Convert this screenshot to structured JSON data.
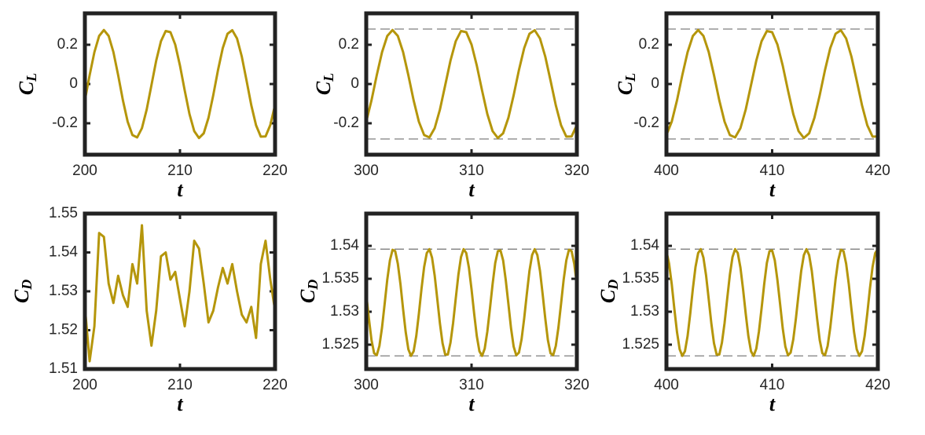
{
  "chart_data": [
    {
      "type": "line",
      "ylabel": "C",
      "ylabel_sub": "L",
      "xlabel": "t",
      "color": "#b5960b",
      "xlim": [
        200,
        220
      ],
      "xticks": [
        200,
        210,
        220
      ],
      "ylim": [
        -0.36,
        0.36
      ],
      "yticks": [
        -0.2,
        0,
        0.2
      ],
      "x": [
        200,
        200.5,
        201,
        201.5,
        202,
        202.5,
        203,
        203.5,
        204,
        204.5,
        205,
        205.5,
        206,
        206.5,
        207,
        207.5,
        208,
        208.5,
        209,
        209.5,
        210,
        210.5,
        211,
        211.5,
        212,
        212.5,
        213,
        213.5,
        214,
        214.5,
        215,
        215.5,
        216,
        216.5,
        217,
        217.5,
        218,
        218.5,
        219,
        219.5,
        220
      ],
      "values": [
        -0.083,
        0.045,
        0.162,
        0.245,
        0.275,
        0.245,
        0.163,
        0.045,
        -0.083,
        -0.192,
        -0.26,
        -0.272,
        -0.225,
        -0.13,
        -0.006,
        0.119,
        0.218,
        0.27,
        0.264,
        0.201,
        0.094,
        -0.033,
        -0.153,
        -0.24,
        -0.275,
        -0.251,
        -0.172,
        -0.057,
        0.071,
        0.183,
        0.256,
        0.274,
        0.232,
        0.14,
        0.018,
        -0.108,
        -0.21,
        -0.268,
        -0.267,
        -0.209,
        -0.106
      ]
    },
    {
      "type": "line",
      "ylabel": "C",
      "ylabel_sub": "L",
      "xlabel": "t",
      "color": "#b5960b",
      "xlim": [
        300,
        320
      ],
      "xticks": [
        300,
        310,
        320
      ],
      "ylim": [
        -0.36,
        0.36
      ],
      "yticks": [
        -0.2,
        0,
        0.2
      ],
      "hlines": [
        0.28,
        -0.28
      ],
      "x": [
        300,
        300.5,
        301,
        301.5,
        302,
        302.5,
        303,
        303.5,
        304,
        304.5,
        305,
        305.5,
        306,
        306.5,
        307,
        307.5,
        308,
        308.5,
        309,
        309.5,
        310,
        310.5,
        311,
        311.5,
        312,
        312.5,
        313,
        313.5,
        314,
        314.5,
        315,
        315.5,
        316,
        316.5,
        317,
        317.5,
        318,
        318.5,
        319,
        319.5,
        320
      ],
      "values": [
        -0.192,
        -0.083,
        0.045,
        0.162,
        0.245,
        0.275,
        0.245,
        0.163,
        0.045,
        -0.083,
        -0.192,
        -0.26,
        -0.272,
        -0.225,
        -0.13,
        -0.006,
        0.119,
        0.218,
        0.27,
        0.264,
        0.201,
        0.094,
        -0.033,
        -0.153,
        -0.24,
        -0.275,
        -0.251,
        -0.172,
        -0.057,
        0.071,
        0.183,
        0.256,
        0.274,
        0.232,
        0.14,
        0.018,
        -0.108,
        -0.21,
        -0.268,
        -0.267,
        -0.209
      ]
    },
    {
      "type": "line",
      "ylabel": "C",
      "ylabel_sub": "L",
      "xlabel": "t",
      "color": "#b5960b",
      "xlim": [
        400,
        420
      ],
      "xticks": [
        400,
        410,
        420
      ],
      "ylim": [
        -0.36,
        0.36
      ],
      "yticks": [
        -0.2,
        0,
        0.2
      ],
      "hlines": [
        0.28,
        -0.28
      ],
      "x": [
        400,
        400.5,
        401,
        401.5,
        402,
        402.5,
        403,
        403.5,
        404,
        404.5,
        405,
        405.5,
        406,
        406.5,
        407,
        407.5,
        408,
        408.5,
        409,
        409.5,
        410,
        410.5,
        411,
        411.5,
        412,
        412.5,
        413,
        413.5,
        414,
        414.5,
        415,
        415.5,
        416,
        416.5,
        417,
        417.5,
        418,
        418.5,
        419,
        419.5,
        420
      ],
      "values": [
        -0.26,
        -0.192,
        -0.083,
        0.045,
        0.162,
        0.245,
        0.275,
        0.245,
        0.163,
        0.045,
        -0.083,
        -0.192,
        -0.26,
        -0.272,
        -0.225,
        -0.13,
        -0.006,
        0.119,
        0.218,
        0.27,
        0.264,
        0.201,
        0.094,
        -0.033,
        -0.153,
        -0.24,
        -0.275,
        -0.251,
        -0.172,
        -0.057,
        0.071,
        0.183,
        0.256,
        0.274,
        0.232,
        0.14,
        0.018,
        -0.108,
        -0.21,
        -0.268,
        -0.267
      ]
    },
    {
      "type": "line",
      "ylabel": "C",
      "ylabel_sub": "D",
      "xlabel": "t",
      "color": "#b5960b",
      "xlim": [
        200,
        220
      ],
      "xticks": [
        200,
        210,
        220
      ],
      "ylim": [
        1.51,
        1.55
      ],
      "yticks": [
        1.51,
        1.52,
        1.53,
        1.54,
        1.55
      ],
      "x": [
        200,
        200.5,
        201,
        201.5,
        202,
        202.5,
        203,
        203.5,
        204,
        204.5,
        205,
        205.5,
        206,
        206.5,
        207,
        207.5,
        208,
        208.5,
        209,
        209.5,
        210,
        210.5,
        211,
        211.5,
        212,
        212.5,
        213,
        213.5,
        214,
        214.5,
        215,
        215.5,
        216,
        216.5,
        217,
        217.5,
        218,
        218.5,
        219,
        219.5,
        220
      ],
      "values": [
        1.526,
        1.512,
        1.521,
        1.545,
        1.544,
        1.532,
        1.527,
        1.534,
        1.529,
        1.526,
        1.537,
        1.532,
        1.547,
        1.525,
        1.516,
        1.525,
        1.539,
        1.54,
        1.533,
        1.535,
        1.528,
        1.521,
        1.53,
        1.543,
        1.541,
        1.532,
        1.522,
        1.525,
        1.531,
        1.536,
        1.532,
        1.537,
        1.53,
        1.524,
        1.522,
        1.526,
        1.518,
        1.537,
        1.543,
        1.533,
        1.525
      ]
    },
    {
      "type": "line",
      "ylabel": "C",
      "ylabel_sub": "D",
      "xlabel": "t",
      "color": "#b5960b",
      "xlim": [
        300,
        320
      ],
      "xticks": [
        300,
        310,
        320
      ],
      "ylim": [
        1.5213,
        1.5449
      ],
      "yticks": [
        1.525,
        1.53,
        1.535,
        1.54
      ],
      "hlines": [
        1.5395,
        1.5233
      ],
      "x": [
        300,
        300.25,
        300.5,
        300.75,
        301,
        301.25,
        301.5,
        301.75,
        302,
        302.25,
        302.5,
        302.75,
        303,
        303.25,
        303.5,
        303.75,
        304,
        304.25,
        304.5,
        304.75,
        305,
        305.25,
        305.5,
        305.75,
        306,
        306.25,
        306.5,
        306.75,
        307,
        307.25,
        307.5,
        307.75,
        308,
        308.25,
        308.5,
        308.75,
        309,
        309.25,
        309.5,
        309.75,
        310,
        310.25,
        310.5,
        310.75,
        311,
        311.25,
        311.5,
        311.75,
        312,
        312.25,
        312.5,
        312.75,
        313,
        313.25,
        313.5,
        313.75,
        314,
        314.25,
        314.5,
        314.75,
        315,
        315.25,
        315.5,
        315.75,
        316,
        316.25,
        316.5,
        316.75,
        317,
        317.25,
        317.5,
        317.75,
        318,
        318.25,
        318.5,
        318.75,
        319,
        319.25,
        319.5,
        319.75,
        320
      ],
      "values": [
        1.5327,
        1.529,
        1.5257,
        1.5237,
        1.5234,
        1.5248,
        1.5276,
        1.5312,
        1.5349,
        1.5378,
        1.5394,
        1.5392,
        1.5373,
        1.5342,
        1.5304,
        1.5269,
        1.5243,
        1.5233,
        1.524,
        1.5263,
        1.5297,
        1.5335,
        1.5368,
        1.5389,
        1.5395,
        1.5382,
        1.5355,
        1.5319,
        1.5282,
        1.5252,
        1.5235,
        1.5235,
        1.5253,
        1.5283,
        1.532,
        1.5356,
        1.5383,
        1.5395,
        1.5389,
        1.5367,
        1.5334,
        1.5297,
        1.5263,
        1.524,
        1.5233,
        1.5244,
        1.527,
        1.5305,
        1.5342,
        1.5374,
        1.5392,
        1.5393,
        1.5378,
        1.5348,
        1.5312,
        1.5275,
        1.5247,
        1.5234,
        1.5238,
        1.5258,
        1.529,
        1.5327,
        1.5362,
        1.5386,
        1.5395,
        1.5386,
        1.5362,
        1.5327,
        1.529,
        1.5257,
        1.5237,
        1.5234,
        1.5248,
        1.5276,
        1.5312,
        1.5349,
        1.5378,
        1.5394,
        1.5392,
        1.5373,
        1.5342
      ]
    },
    {
      "type": "line",
      "ylabel": "C",
      "ylabel_sub": "D",
      "xlabel": "t",
      "color": "#b5960b",
      "xlim": [
        400,
        420
      ],
      "xticks": [
        400,
        410,
        420
      ],
      "ylim": [
        1.5213,
        1.5449
      ],
      "yticks": [
        1.525,
        1.53,
        1.535,
        1.54
      ],
      "hlines": [
        1.5395,
        1.5233
      ],
      "x": [
        400,
        400.25,
        400.5,
        400.75,
        401,
        401.25,
        401.5,
        401.75,
        402,
        402.25,
        402.5,
        402.75,
        403,
        403.25,
        403.5,
        403.75,
        404,
        404.25,
        404.5,
        404.75,
        405,
        405.25,
        405.5,
        405.75,
        406,
        406.25,
        406.5,
        406.75,
        407,
        407.25,
        407.5,
        407.75,
        408,
        408.25,
        408.5,
        408.75,
        409,
        409.25,
        409.5,
        409.75,
        410,
        410.25,
        410.5,
        410.75,
        411,
        411.25,
        411.5,
        411.75,
        412,
        412.25,
        412.5,
        412.75,
        413,
        413.25,
        413.5,
        413.75,
        414,
        414.25,
        414.5,
        414.75,
        415,
        415.25,
        415.5,
        415.75,
        416,
        416.25,
        416.5,
        416.75,
        417,
        417.25,
        417.5,
        417.75,
        418,
        418.25,
        418.5,
        418.75,
        419,
        419.25,
        419.5,
        419.75,
        420
      ],
      "values": [
        1.5392,
        1.5373,
        1.5342,
        1.5304,
        1.5269,
        1.5243,
        1.5233,
        1.524,
        1.5263,
        1.5297,
        1.5335,
        1.5368,
        1.5389,
        1.5395,
        1.5382,
        1.5355,
        1.5319,
        1.5282,
        1.5252,
        1.5235,
        1.5235,
        1.5253,
        1.5283,
        1.532,
        1.5356,
        1.5383,
        1.5395,
        1.5389,
        1.5367,
        1.5334,
        1.5297,
        1.5263,
        1.524,
        1.5233,
        1.5244,
        1.527,
        1.5305,
        1.5342,
        1.5374,
        1.5392,
        1.5393,
        1.5378,
        1.5348,
        1.5312,
        1.5275,
        1.5247,
        1.5234,
        1.5238,
        1.5258,
        1.529,
        1.5327,
        1.5362,
        1.5386,
        1.5395,
        1.5386,
        1.5362,
        1.5327,
        1.529,
        1.5257,
        1.5237,
        1.5234,
        1.5248,
        1.5276,
        1.5312,
        1.5349,
        1.5378,
        1.5394,
        1.5392,
        1.5373,
        1.5342,
        1.5304,
        1.5269,
        1.5243,
        1.5233,
        1.524,
        1.5263,
        1.5297,
        1.5335,
        1.5368,
        1.5389,
        1.5395
      ]
    }
  ]
}
